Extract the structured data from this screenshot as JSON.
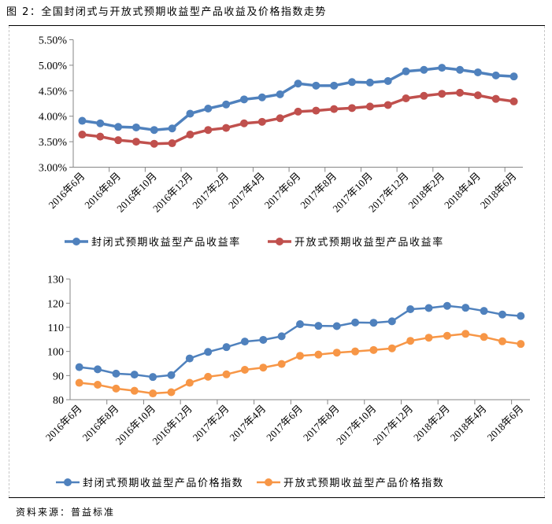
{
  "figure": {
    "title": "图 2：全国封闭式与开放式预期收益型产品收益及价格指数走势",
    "source": "资料来源：普益标准"
  },
  "colors": {
    "closed_yield": "#4f81bd",
    "open_yield": "#c0504d",
    "closed_index": "#4f81bd",
    "open_index": "#f79646",
    "axis": "#868686"
  },
  "chart_data": [
    {
      "type": "line",
      "title": "",
      "xlabel": "",
      "ylabel": "",
      "ylim": [
        3.0,
        5.5
      ],
      "y_unit": "%",
      "yticks": [
        "5.50%",
        "5.00%",
        "4.50%",
        "4.00%",
        "3.50%",
        "3.00%"
      ],
      "ytick_values": [
        5.5,
        5.0,
        4.5,
        4.0,
        3.5,
        3.0
      ],
      "grid": false,
      "legend_position": "bottom",
      "x": [
        "2016年6月",
        "2016年7月",
        "2016年8月",
        "2016年9月",
        "2016年10月",
        "2016年11月",
        "2016年12月",
        "2017年1月",
        "2017年2月",
        "2017年3月",
        "2017年4月",
        "2017年5月",
        "2017年6月",
        "2017年7月",
        "2017年8月",
        "2017年9月",
        "2017年10月",
        "2017年11月",
        "2017年12月",
        "2018年1月",
        "2018年2月",
        "2018年3月",
        "2018年4月",
        "2018年5月",
        "2018年6月"
      ],
      "xtick_labels": [
        "2016年6月",
        "2016年8月",
        "2016年10月",
        "2016年12月",
        "2017年2月",
        "2017年4月",
        "2017年6月",
        "2017年8月",
        "2017年10月",
        "2017年12月",
        "2018年2月",
        "2018年4月",
        "2018年6月"
      ],
      "series": [
        {
          "name": "封闭式预期收益型产品收益率",
          "color_key": "closed_yield",
          "values": [
            3.91,
            3.86,
            3.79,
            3.78,
            3.73,
            3.76,
            4.05,
            4.15,
            4.23,
            4.33,
            4.37,
            4.43,
            4.64,
            4.6,
            4.6,
            4.67,
            4.66,
            4.69,
            4.88,
            4.91,
            4.95,
            4.91,
            4.86,
            4.8,
            4.78
          ]
        },
        {
          "name": "开放式预期收益型产品收益率",
          "color_key": "open_yield",
          "values": [
            3.64,
            3.6,
            3.53,
            3.5,
            3.46,
            3.47,
            3.64,
            3.73,
            3.77,
            3.86,
            3.89,
            3.96,
            4.09,
            4.11,
            4.14,
            4.16,
            4.19,
            4.22,
            4.35,
            4.4,
            4.44,
            4.46,
            4.41,
            4.34,
            4.29
          ]
        }
      ]
    },
    {
      "type": "line",
      "title": "",
      "xlabel": "",
      "ylabel": "",
      "ylim": [
        80,
        130
      ],
      "yticks": [
        "130",
        "120",
        "110",
        "100",
        "90",
        "80"
      ],
      "ytick_values": [
        130,
        120,
        110,
        100,
        90,
        80
      ],
      "grid": false,
      "legend_position": "bottom",
      "x": [
        "2016年6月",
        "2016年7月",
        "2016年8月",
        "2016年9月",
        "2016年10月",
        "2016年11月",
        "2016年12月",
        "2017年1月",
        "2017年2月",
        "2017年3月",
        "2017年4月",
        "2017年5月",
        "2017年6月",
        "2017年7月",
        "2017年8月",
        "2017年9月",
        "2017年10月",
        "2017年11月",
        "2017年12月",
        "2018年1月",
        "2018年2月",
        "2018年3月",
        "2018年4月",
        "2018年5月",
        "2018年6月"
      ],
      "xtick_labels": [
        "2016年6月",
        "2016年8月",
        "2016年10月",
        "2016年12月",
        "2017年2月",
        "2017年4月",
        "2017年6月",
        "2017年8月",
        "2017年10月",
        "2017年12月",
        "2018年2月",
        "2018年4月",
        "2018年6月"
      ],
      "series": [
        {
          "name": "封闭式预期收益型产品价格指数",
          "color_key": "closed_index",
          "values": [
            93.5,
            92.6,
            90.8,
            90.4,
            89.4,
            90.2,
            97.1,
            99.8,
            101.8,
            104.1,
            104.8,
            106.3,
            111.3,
            110.6,
            110.5,
            112.0,
            111.9,
            112.5,
            117.5,
            118.0,
            118.9,
            118.1,
            116.8,
            115.3,
            114.7
          ]
        },
        {
          "name": "开放式预期收益型产品价格指数",
          "color_key": "open_index",
          "values": [
            87.0,
            86.2,
            84.6,
            83.7,
            82.6,
            83.1,
            87.0,
            89.5,
            90.5,
            92.4,
            93.3,
            94.8,
            98.2,
            98.7,
            99.5,
            100.0,
            100.6,
            101.3,
            104.4,
            105.7,
            106.5,
            107.3,
            106.0,
            104.2,
            103.1
          ]
        }
      ]
    }
  ]
}
